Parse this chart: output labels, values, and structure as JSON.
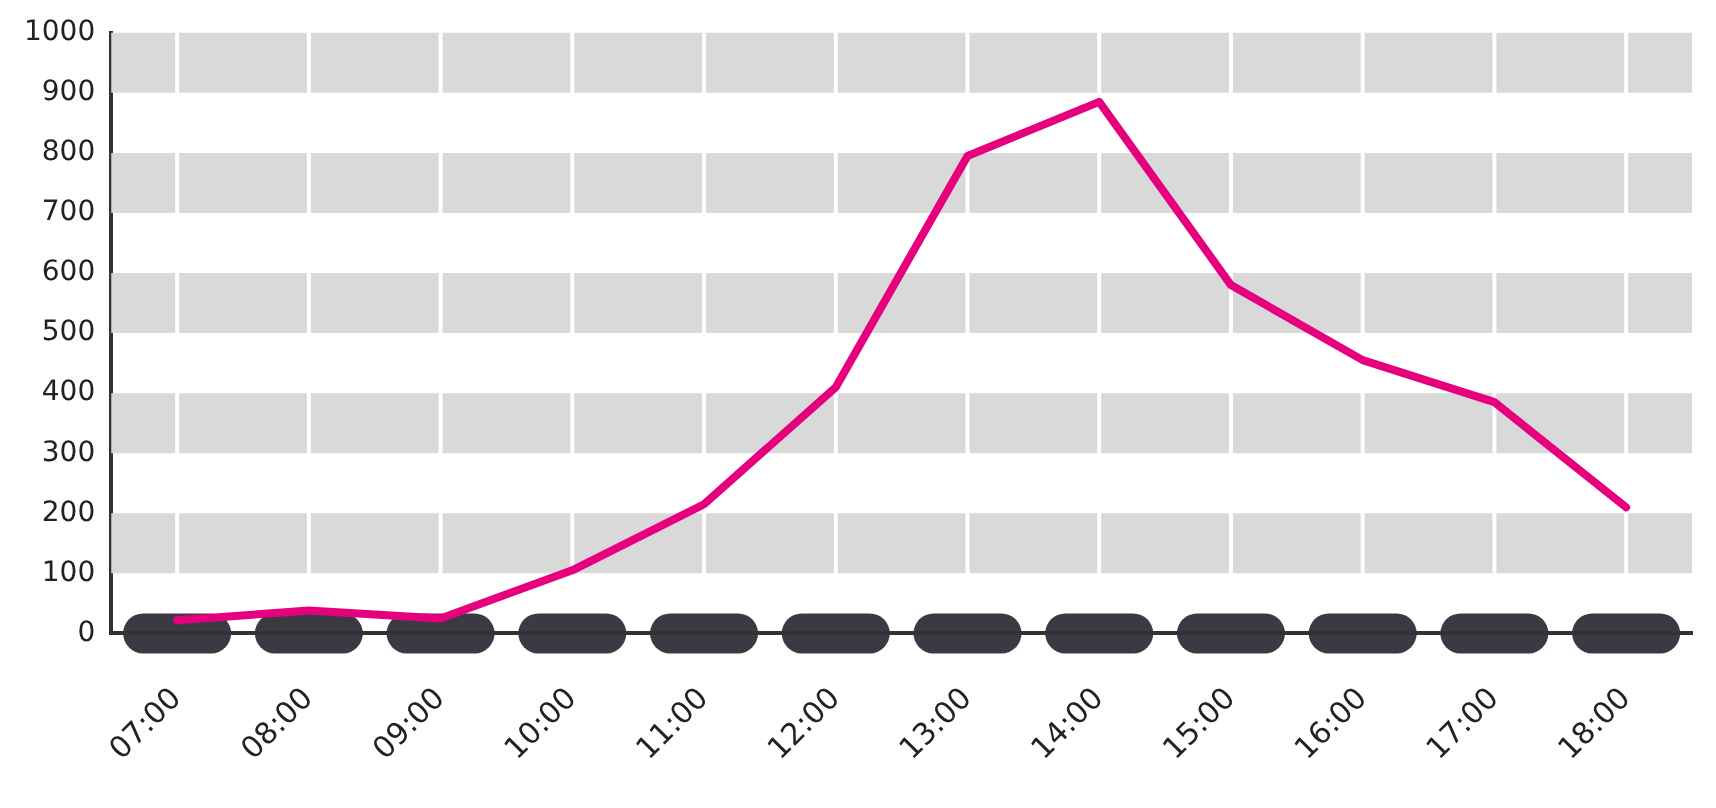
{
  "chart_data": {
    "type": "line",
    "categories": [
      "07:00",
      "08:00",
      "09:00",
      "10:00",
      "11:00",
      "12:00",
      "13:00",
      "14:00",
      "15:00",
      "16:00",
      "17:00",
      "18:00"
    ],
    "series": [
      {
        "color": "#e6007e",
        "values": [
          22,
          38,
          25,
          105,
          215,
          410,
          795,
          885,
          580,
          455,
          385,
          210
        ]
      }
    ],
    "ylim": [
      0,
      1000
    ],
    "yticks": [
      0,
      100,
      200,
      300,
      400,
      500,
      600,
      700,
      800,
      900,
      1000
    ],
    "grid": "x",
    "legend": false,
    "marker": "none",
    "line_style": "solid",
    "bands": [
      {
        "axis": "y",
        "from": 100,
        "to": 200,
        "color": "#d9d9d9"
      },
      {
        "axis": "y",
        "from": 300,
        "to": 400,
        "color": "#d9d9d9"
      },
      {
        "axis": "y",
        "from": 500,
        "to": 600,
        "color": "#d9d9d9"
      },
      {
        "axis": "y",
        "from": 700,
        "to": 800,
        "color": "#d9d9d9"
      },
      {
        "axis": "y",
        "from": 900,
        "to": 1000,
        "color": "#d9d9d9"
      }
    ]
  }
}
